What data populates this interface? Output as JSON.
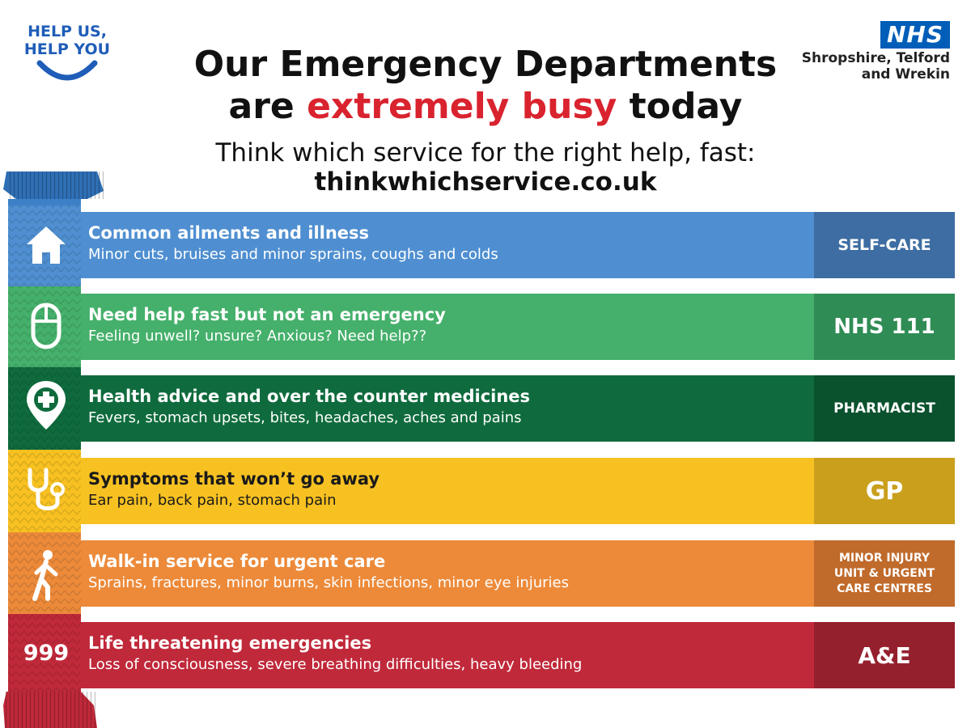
{
  "campaign": {
    "line1": "HELP US,",
    "line2": "HELP YOU"
  },
  "nhs": {
    "logo_text": "NHS",
    "org_line1": "Shropshire, Telford",
    "org_line2": "and Wrekin"
  },
  "headline": {
    "line1": "Our Emergency Departments",
    "line2_pre": "are ",
    "line2_highlight": "extremely busy",
    "line2_post": " today"
  },
  "subline": "Think which service for the right help, fast:",
  "website": "thinkwhichservice.co.uk",
  "colors": {
    "highlight": "#d9232e",
    "nhs_blue": "#005EB8",
    "campaign_blue": "#1f5db8"
  },
  "services": [
    {
      "title": "Common ailments and illness",
      "desc": "Minor cuts, bruises and minor sprains, coughs and colds",
      "badge": "SELF-CARE",
      "icon": "house-icon",
      "color": "#4f8fd1"
    },
    {
      "title": "Need help fast but not an emergency",
      "desc": "Feeling unwell? unsure? Anxious? Need help??",
      "badge": "NHS 111",
      "icon": "computer-mouse-icon",
      "color": "#45b06b"
    },
    {
      "title": "Health advice and over the counter medicines",
      "desc": "Fevers, stomach upsets, bites, headaches, aches and pains",
      "badge": "PHARMACIST",
      "icon": "pharmacy-pin-icon",
      "color": "#0f6b3d"
    },
    {
      "title": "Symptoms that won’t go away",
      "desc": "Ear pain, back pain, stomach pain",
      "badge": "GP",
      "icon": "stethoscope-icon",
      "color": "#f7c122"
    },
    {
      "title": "Walk-in service for urgent care",
      "desc": "Sprains, fractures, minor burns, skin infections, minor eye injuries",
      "badge": "MINOR INJURY\nUNIT & URGENT\nCARE CENTRES",
      "icon": "walking-person-icon",
      "color": "#ec8a3a"
    },
    {
      "title": "Life threatening emergencies",
      "desc": "Loss of consciousness, severe breathing difficulties, heavy bleeding",
      "badge": "A&E",
      "icon": "999",
      "color": "#c0293a"
    }
  ]
}
